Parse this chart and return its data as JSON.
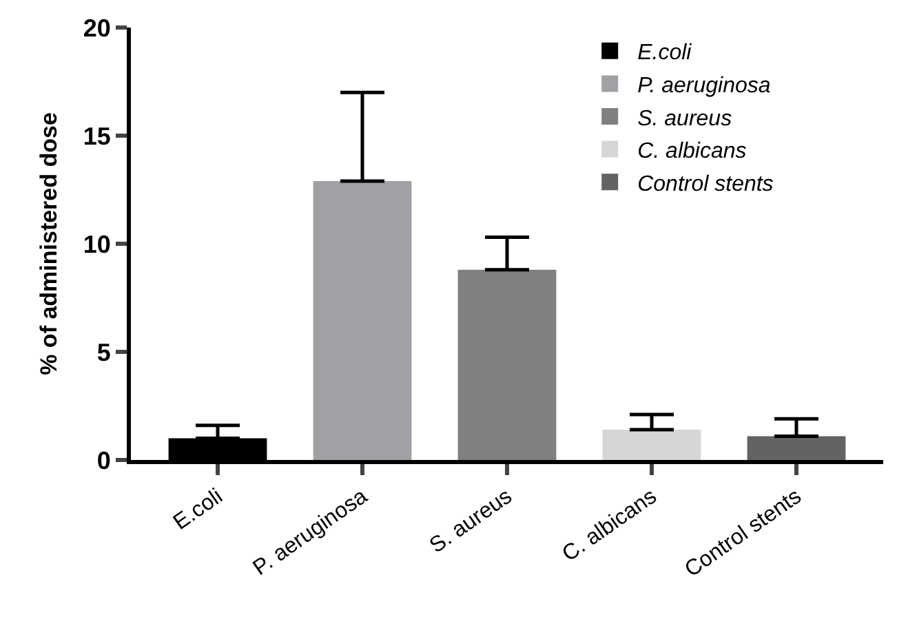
{
  "chart_data": {
    "type": "bar",
    "ylabel": "% of administered dose",
    "categories": [
      "E.coli",
      "P. aeruginosa",
      "S. aureus",
      "C. albicans",
      "Control stents"
    ],
    "series": [
      {
        "name": "E.coli",
        "color": "#000000",
        "values": [
          1.0,
          null,
          null,
          null,
          null
        ],
        "errors": [
          [
            1.0,
            1.6
          ],
          null,
          null,
          null,
          null
        ]
      },
      {
        "name": "P. aeruginosa",
        "color": "#a0a0a5",
        "values": [
          null,
          12.9,
          null,
          null,
          null
        ],
        "errors": [
          null,
          [
            12.9,
            17.0
          ],
          null,
          null,
          null
        ]
      },
      {
        "name": "S. aureus",
        "color": "#808080",
        "values": [
          null,
          null,
          8.8,
          null,
          null
        ],
        "errors": [
          null,
          null,
          [
            8.8,
            10.3
          ],
          null,
          null
        ]
      },
      {
        "name": "C. albicans",
        "color": "#d6d6d6",
        "values": [
          null,
          null,
          null,
          1.4,
          null
        ],
        "errors": [
          null,
          null,
          null,
          [
            1.4,
            2.1
          ],
          null
        ]
      },
      {
        "name": "Control stents",
        "color": "#636363",
        "values": [
          null,
          null,
          null,
          null,
          1.1
        ],
        "errors": [
          null,
          null,
          null,
          null,
          [
            1.1,
            1.9
          ]
        ]
      }
    ],
    "ylim": [
      0,
      20
    ],
    "yticks": [
      0,
      5,
      10,
      15,
      20
    ],
    "legend": "top right"
  }
}
